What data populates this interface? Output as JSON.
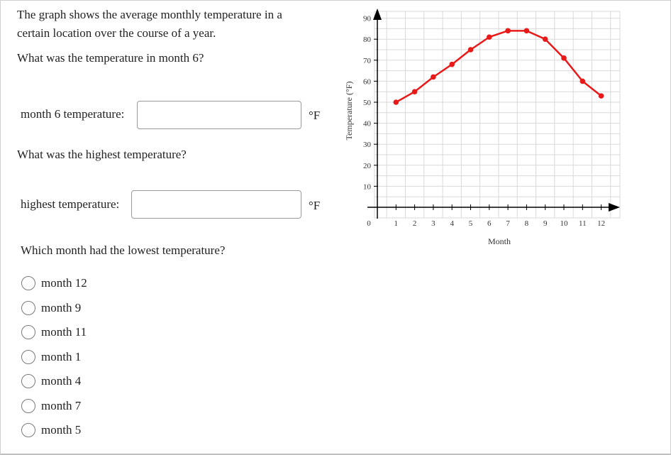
{
  "question": {
    "intro": "The graph shows the average monthly temperature in a certain location over the course of a year.",
    "q1": "What was the temperature in month 6?",
    "q1_label": "month 6 temperature:",
    "q1_value": "",
    "q1_unit": "°F",
    "q2": "What was the highest temperature?",
    "q2_label": "highest temperature:",
    "q2_value": "",
    "q2_unit": "°F",
    "q3": "Which month had the lowest temperature?",
    "options": [
      "month 12",
      "month 9",
      "month 11",
      "month 1",
      "month 4",
      "month 7",
      "month 5"
    ]
  },
  "chart_data": {
    "type": "line",
    "x": [
      1,
      2,
      3,
      4,
      5,
      6,
      7,
      8,
      9,
      10,
      11,
      12
    ],
    "series": [
      {
        "values": [
          50,
          55,
          62,
          68,
          75,
          81,
          84,
          84,
          80,
          71,
          60,
          53
        ],
        "color": "#e81919"
      }
    ],
    "xlabel": "Month",
    "ylabel": "Temperature (°F)",
    "xticks": [
      "1",
      "2",
      "3",
      "4",
      "5",
      "6",
      "7",
      "8",
      "9",
      "10",
      "11",
      "12"
    ],
    "yticks": [
      "0",
      "10",
      "20",
      "30",
      "40",
      "50",
      "60",
      "70",
      "80",
      "90"
    ],
    "xlim": [
      0,
      13
    ],
    "ylim": [
      0,
      90
    ],
    "grid": true
  }
}
